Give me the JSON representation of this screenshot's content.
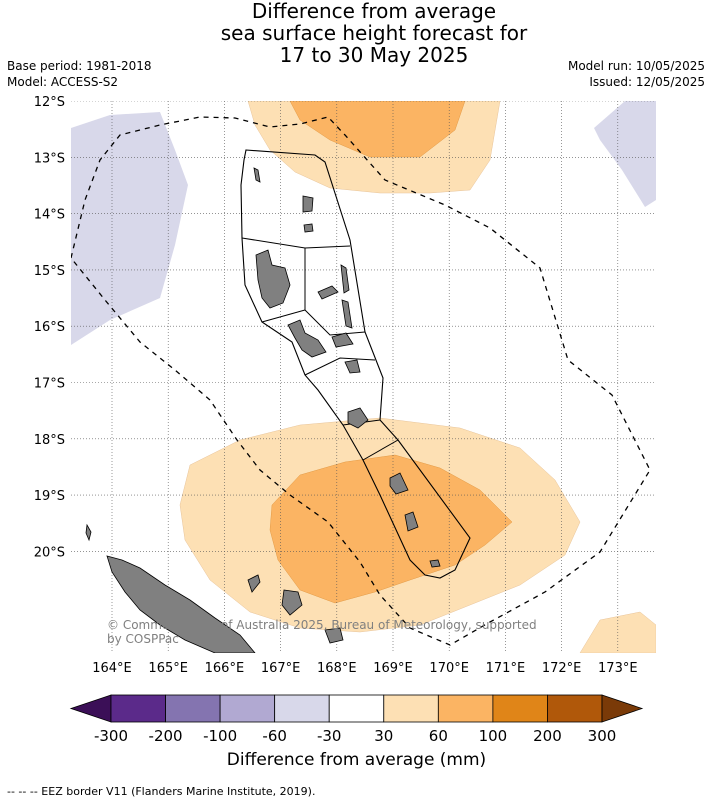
{
  "title": {
    "line1": "Difference from average",
    "line2": "sea surface height forecast for",
    "line3": "17 to 30 May 2025"
  },
  "meta": {
    "base_period": "Base period: 1981-2018",
    "model": "Model: ACCESS-S2",
    "model_run": "Model run: 10/05/2025",
    "issued": "Issued: 12/05/2025"
  },
  "map": {
    "lat_labels": [
      "12°S",
      "13°S",
      "14°S",
      "15°S",
      "16°S",
      "17°S",
      "18°S",
      "19°S",
      "20°S"
    ],
    "lon_labels": [
      "164°E",
      "165°E",
      "166°E",
      "167°E",
      "168°E",
      "169°E",
      "170°E",
      "171°E",
      "172°E",
      "173°E"
    ],
    "copyright_line1": "© Commonwealth of Australia 2025, Bureau of Meteorology, supported",
    "copyright_line2": "by COSPPac",
    "colors": {
      "neg_light": "#d8d8ea",
      "pos_light": "#fde0b4",
      "pos_mid": "#fbb463",
      "land": "#808080"
    }
  },
  "colorbar": {
    "labels": [
      "-300",
      "-200",
      "-100",
      "-60",
      "-30",
      "30",
      "60",
      "100",
      "200",
      "300"
    ],
    "colors": [
      "#3b0f57",
      "#5b2a8a",
      "#8474b0",
      "#b1a9d2",
      "#d8d8ea",
      "#ffffff",
      "#fde0b4",
      "#fbb463",
      "#e08518",
      "#b0580a",
      "#7a3a08"
    ],
    "title": "Difference from average (mm)"
  },
  "footer": "-- -- -- EEZ border V11 (Flanders Marine Institute, 2019)."
}
